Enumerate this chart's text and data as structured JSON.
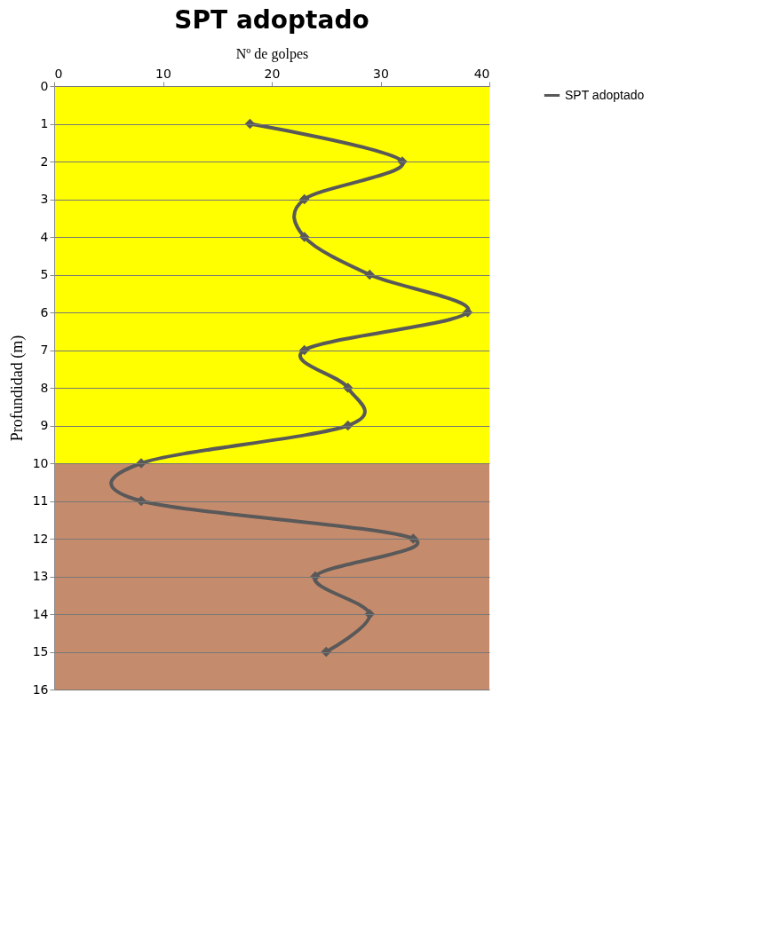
{
  "chart_data": {
    "type": "line",
    "title": "SPT adoptado",
    "xlabel": "Nº de golpes",
    "ylabel": "Profundidad (m)",
    "series": [
      {
        "name": "SPT adoptado",
        "color": "#595959",
        "x": [
          18,
          32,
          23,
          23,
          29,
          38,
          23,
          27,
          27,
          8,
          8,
          33,
          24,
          29,
          25
        ],
        "values": [
          1,
          2,
          3,
          4,
          5,
          6,
          7,
          8,
          9,
          10,
          11,
          12,
          13,
          14,
          15
        ]
      }
    ],
    "xlim": [
      0,
      40
    ],
    "xticks": [
      0,
      10,
      20,
      30,
      40
    ],
    "ylim": [
      16,
      0
    ],
    "yticks": [
      0,
      1,
      2,
      3,
      4,
      5,
      6,
      7,
      8,
      9,
      10,
      11,
      12,
      13,
      14,
      15,
      16
    ],
    "bands": [
      {
        "axis": "y",
        "from": 0,
        "to": 10,
        "color": "#ffff00"
      },
      {
        "axis": "y",
        "from": 10,
        "to": 16,
        "color": "#c58b6d"
      }
    ],
    "grid": "y",
    "marker": "diamond",
    "legend": "right"
  }
}
